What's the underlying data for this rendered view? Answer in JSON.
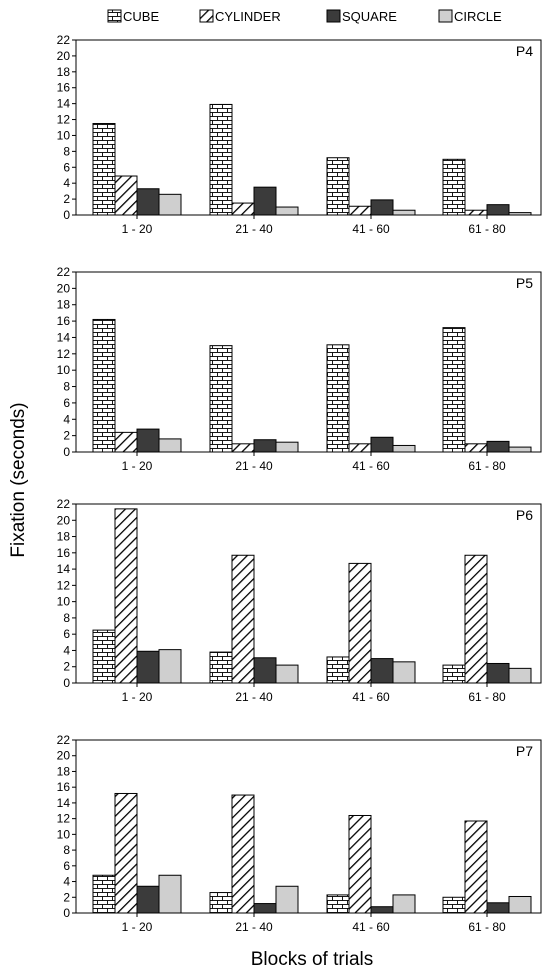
{
  "figure": {
    "ylabel": "Fixation (seconds)",
    "xlabel": "Blocks of trials"
  },
  "legend": {
    "placement": "top",
    "items": [
      {
        "label": "CUBE",
        "pattern": "brick"
      },
      {
        "label": "CYLINDER",
        "pattern": "hatch"
      },
      {
        "label": "SQUARE",
        "pattern": "dark"
      },
      {
        "label": "CIRCLE",
        "pattern": "light"
      }
    ]
  },
  "colors": {
    "dark": "#3b3b3b",
    "light": "#cfcfcf",
    "stroke": "#000000"
  },
  "chart_data": [
    {
      "type": "bar",
      "panel": "P4",
      "categories": [
        "1 - 20",
        "21 - 40",
        "41 - 60",
        "61 - 80"
      ],
      "yticks": [
        "0",
        "2",
        "4",
        "6",
        "8",
        "10",
        "12",
        "14",
        "16",
        "18",
        "20",
        "22"
      ],
      "ylim": [
        0,
        22
      ],
      "series": [
        {
          "name": "CUBE",
          "values": [
            11.5,
            13.9,
            7.2,
            7.0
          ]
        },
        {
          "name": "CYLINDER",
          "values": [
            4.9,
            1.5,
            1.1,
            0.6
          ]
        },
        {
          "name": "SQUARE",
          "values": [
            3.3,
            3.5,
            1.9,
            1.3
          ]
        },
        {
          "name": "CIRCLE",
          "values": [
            2.6,
            1.0,
            0.6,
            0.3
          ]
        }
      ]
    },
    {
      "type": "bar",
      "panel": "P5",
      "categories": [
        "1 - 20",
        "21 - 40",
        "41 - 60",
        "61 - 80"
      ],
      "yticks": [
        "0",
        "2",
        "4",
        "6",
        "8",
        "10",
        "12",
        "14",
        "16",
        "18",
        "20",
        "22"
      ],
      "ylim": [
        0,
        22
      ],
      "series": [
        {
          "name": "CUBE",
          "values": [
            16.2,
            13.0,
            13.1,
            15.2
          ]
        },
        {
          "name": "CYLINDER",
          "values": [
            2.4,
            1.0,
            1.0,
            1.0
          ]
        },
        {
          "name": "SQUARE",
          "values": [
            2.8,
            1.5,
            1.8,
            1.3
          ]
        },
        {
          "name": "CIRCLE",
          "values": [
            1.6,
            1.2,
            0.8,
            0.6
          ]
        }
      ]
    },
    {
      "type": "bar",
      "panel": "P6",
      "categories": [
        "1 - 20",
        "21 - 40",
        "41 - 60",
        "61 - 80"
      ],
      "yticks": [
        "0",
        "2",
        "4",
        "6",
        "8",
        "10",
        "12",
        "14",
        "16",
        "18",
        "20",
        "22"
      ],
      "ylim": [
        0,
        22
      ],
      "series": [
        {
          "name": "CUBE",
          "values": [
            6.5,
            3.8,
            3.2,
            2.2
          ]
        },
        {
          "name": "CYLINDER",
          "values": [
            21.4,
            15.7,
            14.7,
            15.7
          ]
        },
        {
          "name": "SQUARE",
          "values": [
            3.9,
            3.1,
            3.0,
            2.4
          ]
        },
        {
          "name": "CIRCLE",
          "values": [
            4.1,
            2.2,
            2.6,
            1.8
          ]
        }
      ]
    },
    {
      "type": "bar",
      "panel": "P7",
      "categories": [
        "1 - 20",
        "21 - 40",
        "41 - 60",
        "61 - 80"
      ],
      "yticks": [
        "0",
        "2",
        "4",
        "6",
        "8",
        "10",
        "12",
        "14",
        "16",
        "18",
        "20",
        "22"
      ],
      "ylim": [
        0,
        22
      ],
      "series": [
        {
          "name": "CUBE",
          "values": [
            4.8,
            2.6,
            2.3,
            2.0
          ]
        },
        {
          "name": "CYLINDER",
          "values": [
            15.2,
            15.0,
            12.4,
            11.7
          ]
        },
        {
          "name": "SQUARE",
          "values": [
            3.4,
            1.2,
            0.8,
            1.3
          ]
        },
        {
          "name": "CIRCLE",
          "values": [
            4.8,
            3.4,
            2.3,
            2.1
          ]
        }
      ]
    }
  ]
}
